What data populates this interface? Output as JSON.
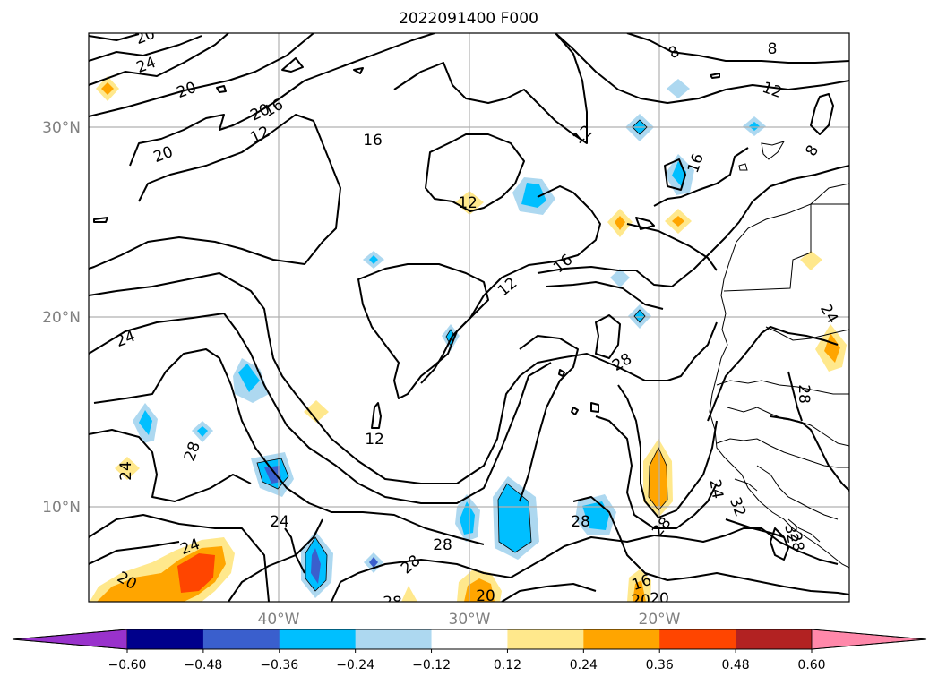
{
  "title": "2022091400 F000",
  "map": {
    "lat_range": [
      5,
      35
    ],
    "lon_range": [
      -50,
      -10
    ],
    "lat_labels": [
      "30°N",
      "20°N",
      "10°N"
    ],
    "lon_labels": [
      "40°W",
      "30°W",
      "20°W"
    ],
    "gridlines": true,
    "coastline": true
  },
  "contour_labels": [
    "20",
    "24",
    "20",
    "20",
    "16",
    "12",
    "16",
    "20",
    "24",
    "8",
    "8",
    "12",
    "8",
    "16",
    "12",
    "12",
    "16",
    "12",
    "28",
    "24",
    "28",
    "12",
    "24",
    "28",
    "24",
    "28",
    "28",
    "28",
    "24",
    "28",
    "32",
    "28",
    "32",
    "20",
    "20",
    "16",
    "20",
    "28",
    "24",
    "20"
  ],
  "colorbar": {
    "ticks": [
      "−0.60",
      "−0.48",
      "−0.36",
      "−0.24",
      "−0.12",
      "0.12",
      "0.24",
      "0.36",
      "0.48",
      "0.60"
    ],
    "colors": [
      "#9932cc",
      "#00008b",
      "#3a5fcd",
      "#00bfff",
      "#add8f0",
      "#ffffff",
      "#ffe88c",
      "#ffa500",
      "#ff4500",
      "#b22222",
      "#ff88aa"
    ],
    "extend": "both"
  },
  "colors": {
    "grid": "#b0b0b0",
    "axis_labels": "#808080",
    "contour": "#000000"
  }
}
